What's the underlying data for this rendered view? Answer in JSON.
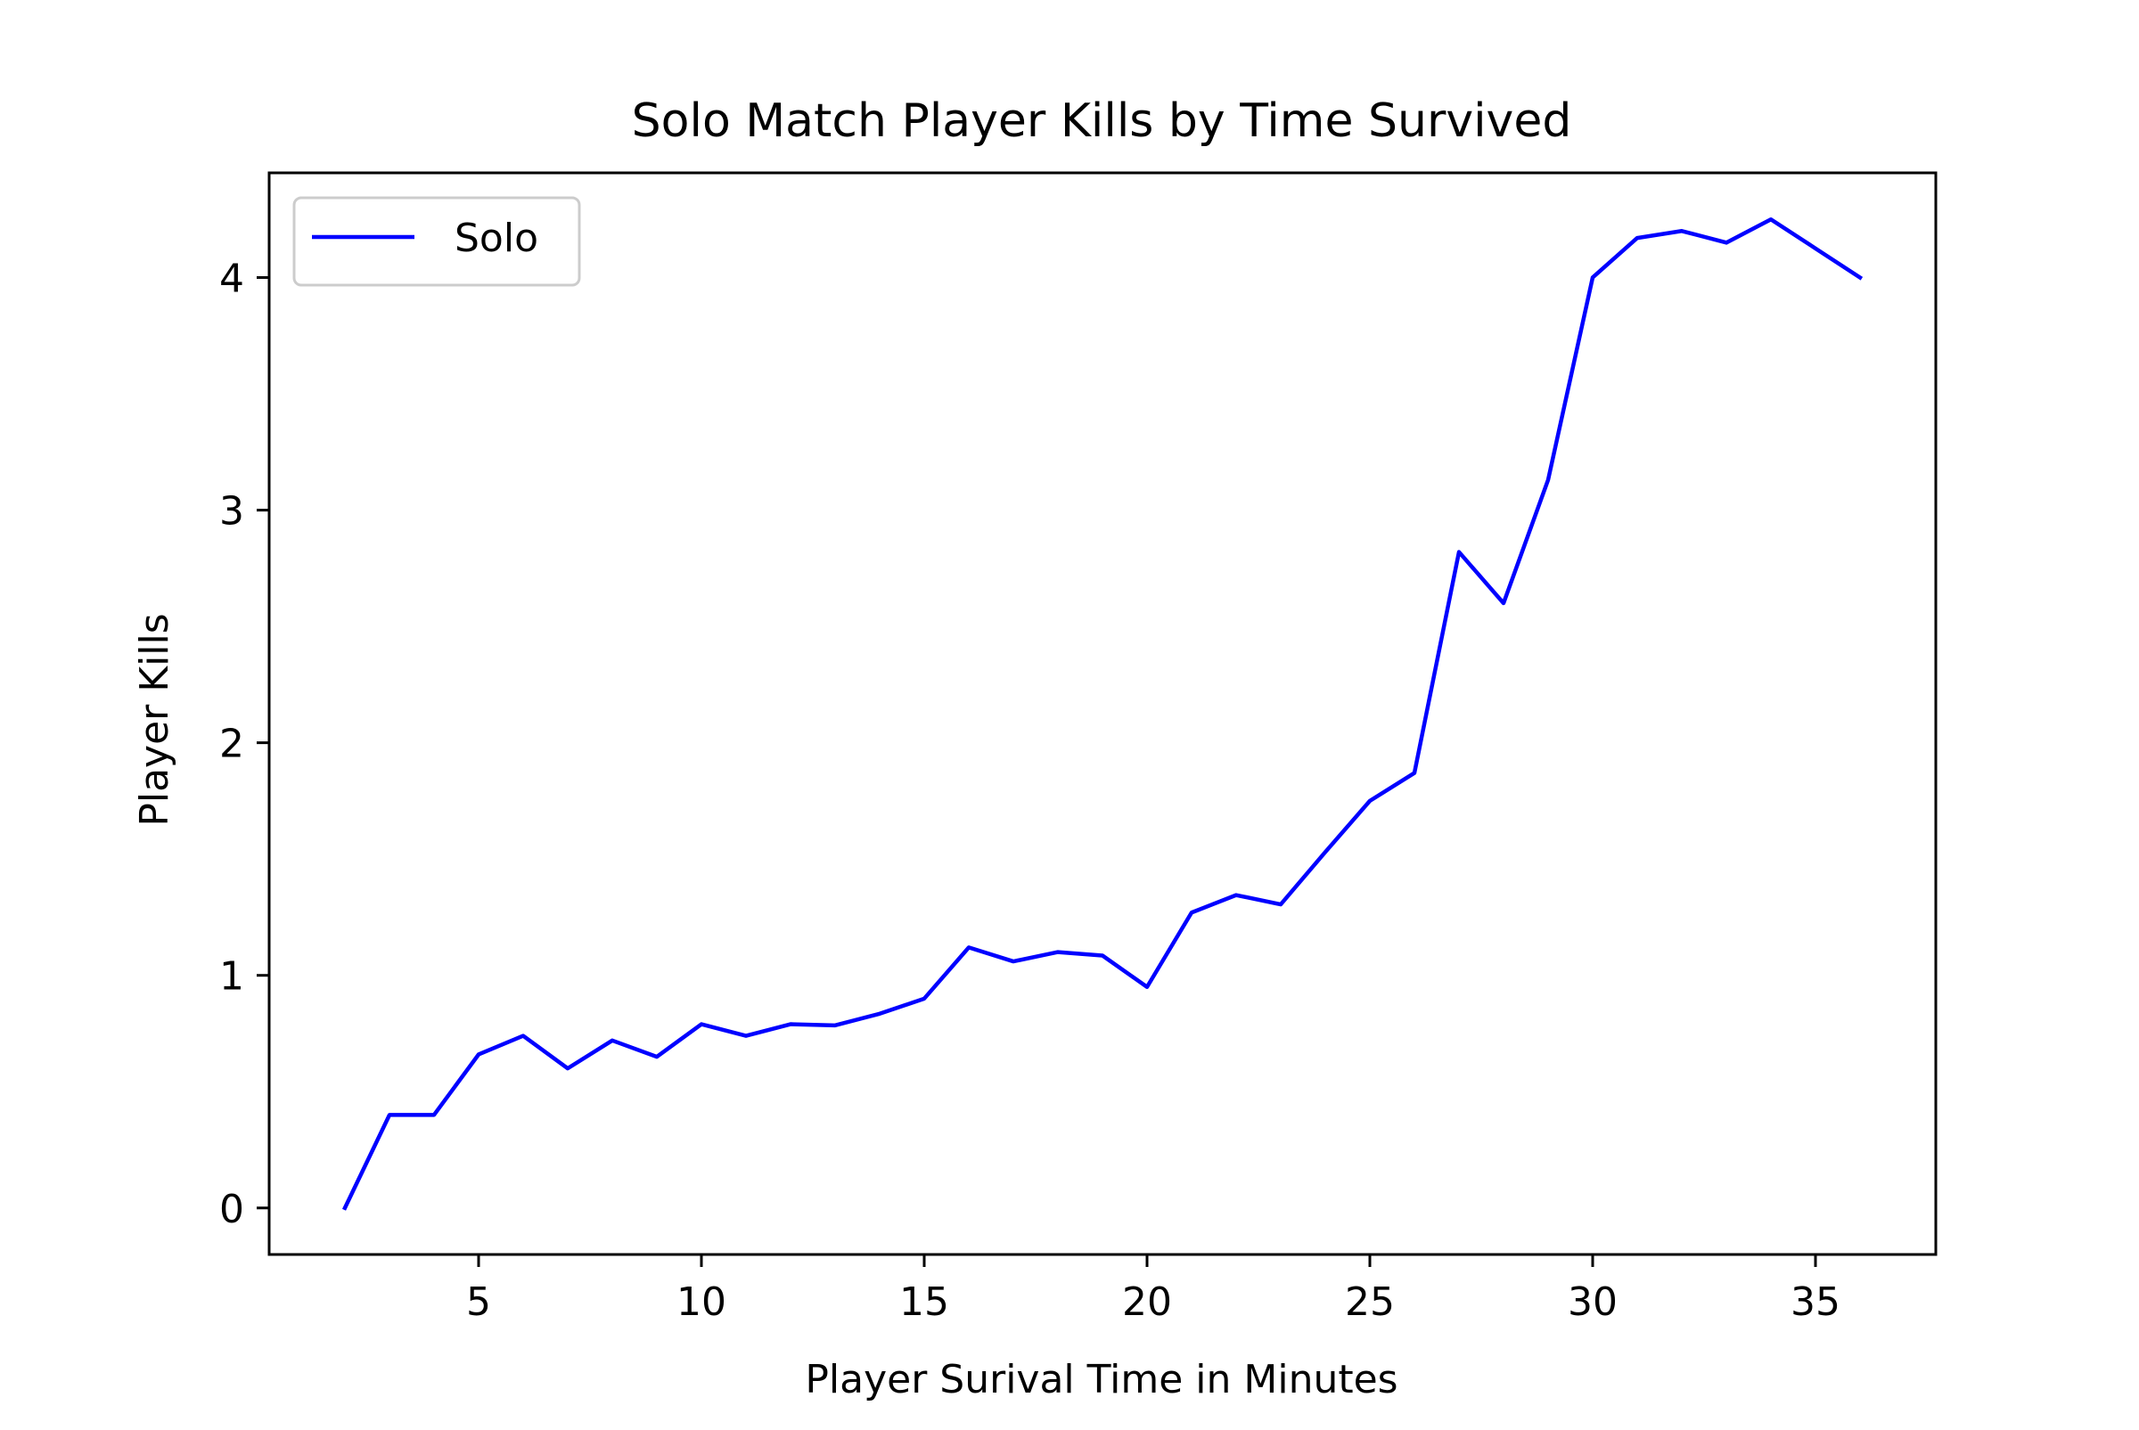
{
  "chart_data": {
    "type": "line",
    "title": "Solo Match Player Kills by Time Survived",
    "xlabel": "Player Surival Time in Minutes",
    "ylabel": "Player Kills",
    "xlim": [
      0.3,
      37.7
    ],
    "ylim": [
      -0.2,
      4.45
    ],
    "xticks": [
      5,
      10,
      15,
      20,
      25,
      30,
      35
    ],
    "yticks": [
      0,
      1,
      2,
      3,
      4
    ],
    "grid": false,
    "legend_position": "top-left",
    "colors": {
      "series": "#0000ff",
      "axes": "#000000",
      "legend_border": "#cccccc"
    },
    "series": [
      {
        "name": "Solo",
        "x": [
          2,
          3,
          4,
          5,
          6,
          7,
          8,
          9,
          10,
          11,
          12,
          13,
          14,
          15,
          16,
          17,
          18,
          19,
          20,
          21,
          22,
          23,
          24,
          25,
          26,
          27,
          28,
          29,
          30,
          31,
          32,
          33,
          34,
          35,
          36
        ],
        "y": [
          0.0,
          0.4,
          0.4,
          0.66,
          0.74,
          0.6,
          0.72,
          0.65,
          0.79,
          0.74,
          0.79,
          0.785,
          0.835,
          0.9,
          1.12,
          1.06,
          1.1,
          1.085,
          0.95,
          1.27,
          1.345,
          1.305,
          1.53,
          1.75,
          1.87,
          2.82,
          2.6,
          3.13,
          4.0,
          4.17,
          4.2,
          4.15,
          4.25,
          4.125,
          4.0
        ]
      }
    ]
  }
}
